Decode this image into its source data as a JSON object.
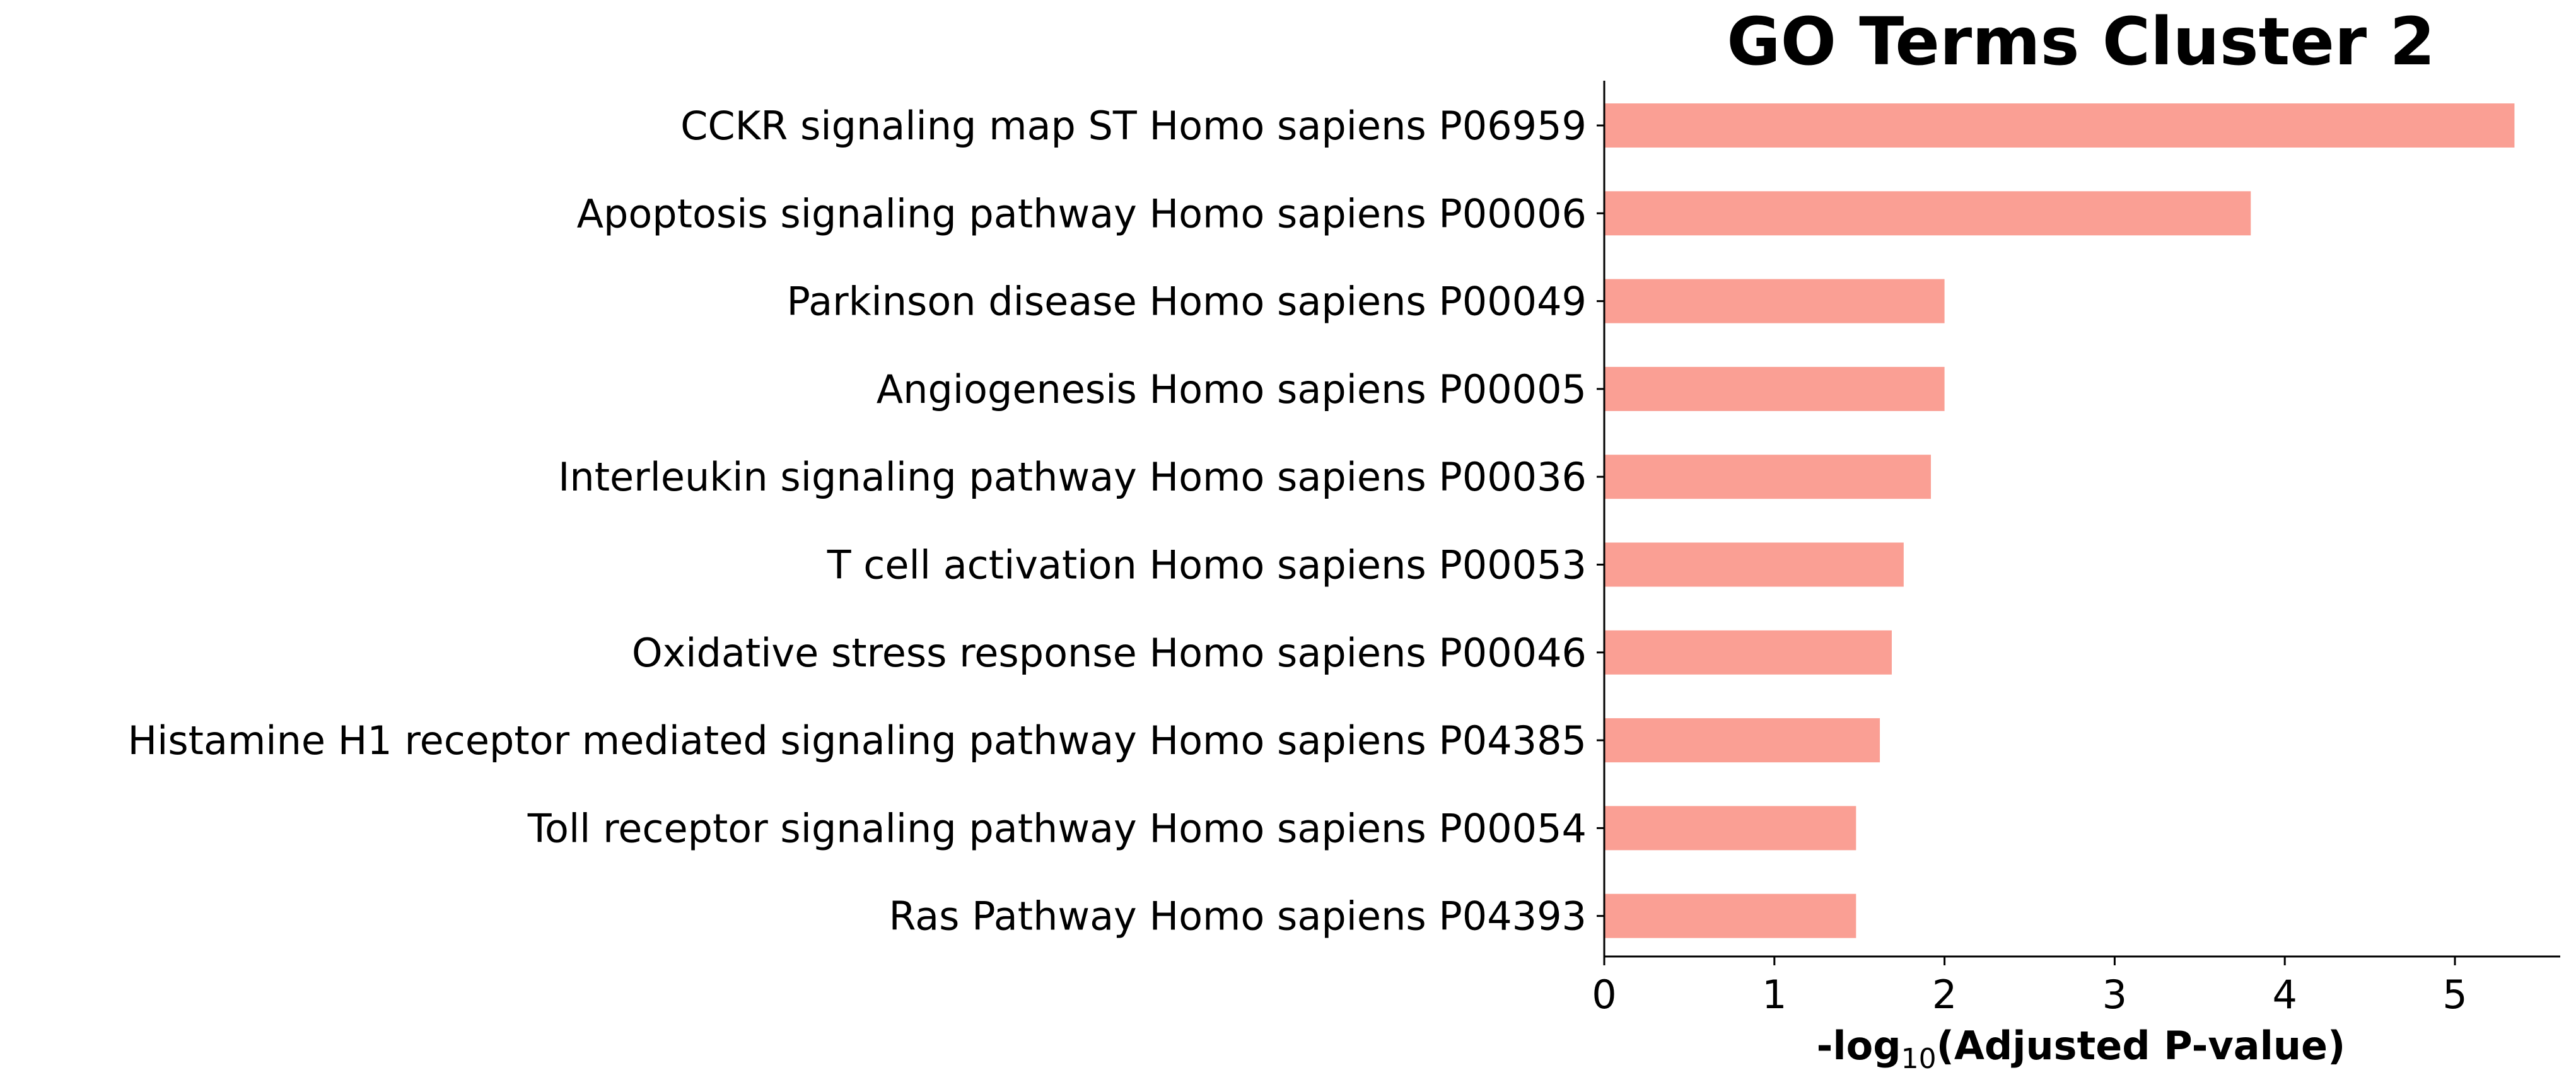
{
  "chart_data": {
    "type": "bar",
    "orientation": "horizontal",
    "title": "GO Terms Cluster 2",
    "xlabel": {
      "prefix": "-log",
      "subscript": "10",
      "suffix": "(Adjusted P-value)"
    },
    "ylabel": "",
    "xlim": [
      0,
      5.62
    ],
    "xticks": [
      0,
      1,
      2,
      3,
      4,
      5
    ],
    "grid": false,
    "legend": "none",
    "bar_color": "#fa9f94",
    "categories": [
      "CCKR signaling map ST Homo sapiens P06959",
      "Apoptosis signaling pathway Homo sapiens P00006",
      "Parkinson disease Homo sapiens P00049",
      "Angiogenesis Homo sapiens P00005",
      "Interleukin signaling pathway Homo sapiens P00036",
      "T cell activation Homo sapiens P00053",
      "Oxidative stress response Homo sapiens P00046",
      "Histamine H1 receptor mediated signaling pathway Homo sapiens P04385",
      "Toll receptor signaling pathway Homo sapiens P00054",
      "Ras Pathway Homo sapiens P04393"
    ],
    "values": [
      5.35,
      3.8,
      2.0,
      2.0,
      1.92,
      1.76,
      1.69,
      1.62,
      1.48,
      1.48
    ]
  }
}
